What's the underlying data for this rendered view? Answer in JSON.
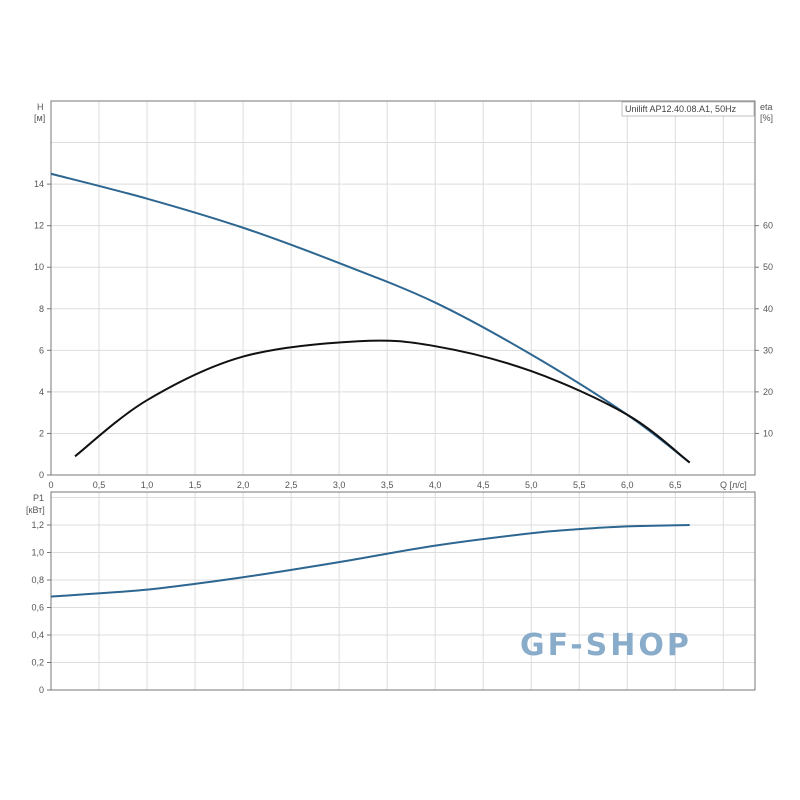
{
  "chart_data": [
    {
      "type": "line",
      "title": "Unilift AP12.40.08.A1, 50Hz",
      "ylabel": "H",
      "yunit": "[м]",
      "y2label": "eta",
      "y2unit": "[%]",
      "xlabel": "Q [л/с]",
      "xlim": [
        0,
        7.33
      ],
      "ylim": [
        0,
        18
      ],
      "y2lim": [
        0,
        90
      ],
      "grid": true,
      "xticks": [
        "0",
        "0,5",
        "1,0",
        "1,5",
        "2,0",
        "2,5",
        "3,0",
        "3,5",
        "4,0",
        "4,5",
        "5,0",
        "5,5",
        "6,0",
        "6,5"
      ],
      "yticks": [
        "0",
        "2",
        "4",
        "6",
        "8",
        "10",
        "12",
        "14"
      ],
      "y2ticks": [
        "10",
        "20",
        "30",
        "40",
        "50",
        "60"
      ],
      "series": [
        {
          "axis": "H",
          "color": "#2d6690",
          "x": [
            0,
            1,
            2,
            3,
            4,
            5,
            6,
            6.65
          ],
          "y": [
            14.5,
            13.3,
            11.9,
            10.2,
            8.3,
            5.8,
            2.9,
            0.6
          ]
        },
        {
          "axis": "eta",
          "color": "#111111",
          "x": [
            0.25,
            1,
            2,
            3.2,
            4,
            5,
            6,
            6.65
          ],
          "y": [
            4.5,
            18,
            28.5,
            32.2,
            31,
            25,
            14.5,
            3
          ]
        }
      ]
    },
    {
      "type": "line",
      "ylabel": "P1",
      "yunit": "[кВт]",
      "xlim": [
        0,
        7.33
      ],
      "ylim": [
        0,
        1.44
      ],
      "grid": true,
      "yticks": [
        "0",
        "0,2",
        "0,4",
        "0,6",
        "0,8",
        "1,0",
        "1,2"
      ],
      "series": [
        {
          "color": "#2d6690",
          "x": [
            0,
            1,
            2,
            3,
            4,
            5,
            5.5,
            6,
            6.65
          ],
          "y": [
            0.68,
            0.73,
            0.82,
            0.93,
            1.05,
            1.14,
            1.17,
            1.19,
            1.2
          ]
        }
      ]
    }
  ],
  "watermark": "GF-SHOP"
}
